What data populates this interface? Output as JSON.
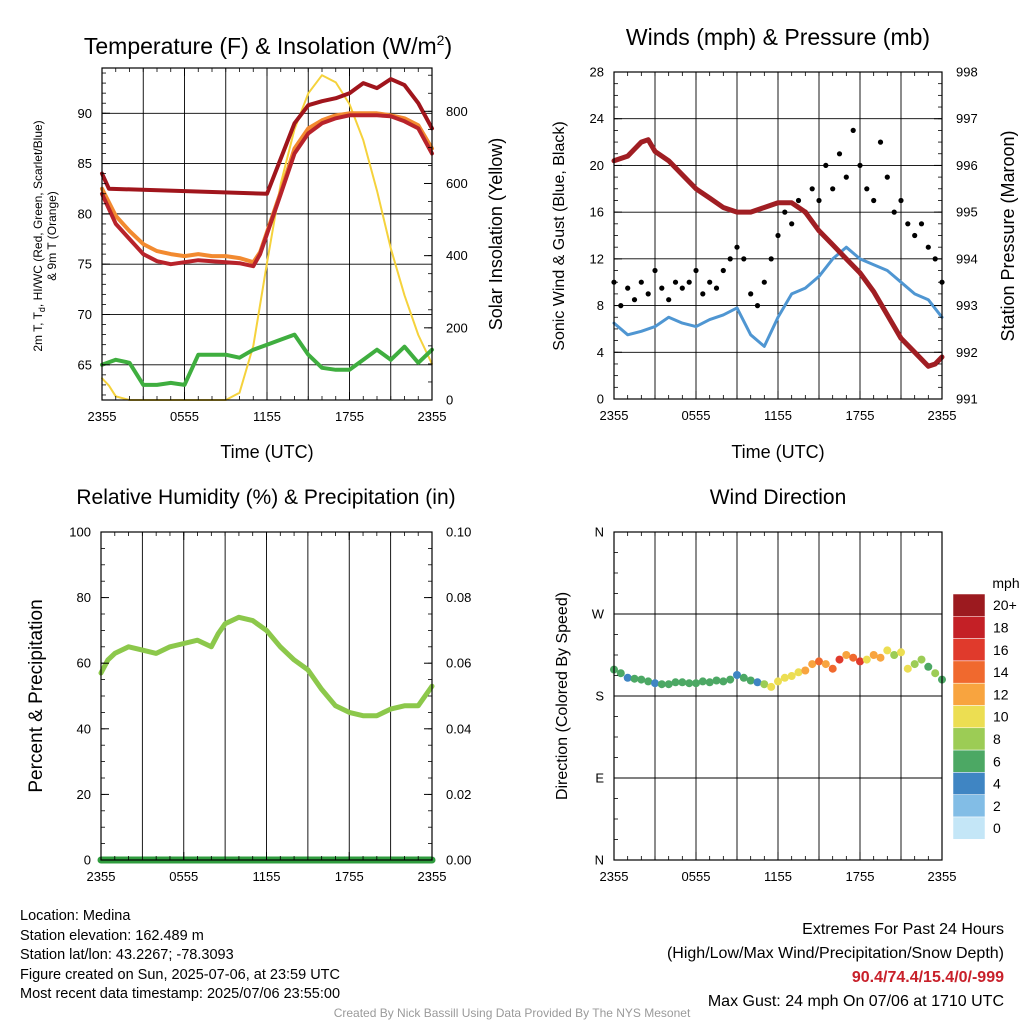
{
  "colors": {
    "red": "#b8232b",
    "scarlet": "#d03030",
    "orange": "#f28a30",
    "darkred": "#a0151c",
    "green": "#3fae3f",
    "yellow": "#f5d23c",
    "blue": "#4f96d2",
    "maroon": "#a01e23",
    "black": "#000000",
    "rh_green": "#8cc84b",
    "precip_green": "#2f9c3e"
  },
  "panels": {
    "temp": {
      "title_main": "Temperature (F) & Insolation (W/m",
      "title_sup": "2",
      "title_end": ")",
      "ylabel_left_1": "2m T, T",
      "ylabel_left_sub": "d",
      "ylabel_left_2": ", HI/WC (Red, Green, Scarlet/Blue)",
      "ylabel_left_3": "& 9m T (Orange)",
      "ylabel_right": "Solar Insolation (Yellow)",
      "xlabel": "Time (UTC)",
      "yticks": [
        "65",
        "70",
        "75",
        "80",
        "85",
        "90"
      ],
      "y2ticks": [
        "0",
        "200",
        "400",
        "600",
        "800"
      ]
    },
    "wind": {
      "title": "Winds (mph) & Pressure (mb)",
      "ylabel_left": "Sonic Wind & Gust (Blue, Black)",
      "ylabel_right": "Station Pressure (Maroon)",
      "xlabel": "Time (UTC)",
      "yticks": [
        "0",
        "4",
        "8",
        "12",
        "16",
        "20",
        "24",
        "28"
      ],
      "y2ticks": [
        "991",
        "992",
        "993",
        "994",
        "995",
        "996",
        "997",
        "998"
      ]
    },
    "rh": {
      "title": "Relative Humidity (%) & Precipitation (in)",
      "ylabel_left": "Percent & Precipitation",
      "yticks": [
        "0",
        "20",
        "40",
        "60",
        "80",
        "100"
      ],
      "y2ticks": [
        "0.00",
        "0.02",
        "0.04",
        "0.06",
        "0.08",
        "0.10"
      ]
    },
    "wdir": {
      "title": "Wind Direction",
      "ylabel_left": "Direction (Colored By Speed)",
      "yticks": [
        "N",
        "E",
        "S",
        "W",
        "N"
      ],
      "legend_title": "mph",
      "legend_labels": [
        "20+",
        "18",
        "16",
        "14",
        "12",
        "10",
        "8",
        "6",
        "4",
        "2",
        "0"
      ],
      "legend_colors": [
        "#9c1a1f",
        "#c42026",
        "#e03a2c",
        "#f0692e",
        "#f8a43f",
        "#ecde52",
        "#9ccc55",
        "#4ca864",
        "#3f85c3",
        "#82bde6",
        "#c4e6f7"
      ]
    }
  },
  "xticks": [
    "2355",
    "0555",
    "1155",
    "1755",
    "2355"
  ],
  "footer": {
    "location": "Location: Medina",
    "elevation": "Station elevation: 162.489 m",
    "latlon": "Station lat/lon: 43.2267; -78.3093",
    "created": "Figure created on Sun, 2025-07-06, at 23:59 UTC",
    "recent": "Most recent data timestamp: 2025/07/06 23:55:00",
    "extremes_title": "Extremes For Past 24 Hours",
    "extremes_desc": "(High/Low/Max Wind/Precipitation/Snow Depth)",
    "extremes_values": "90.4/74.4/15.4/0/-999",
    "max_gust": "Max Gust: 24 mph On 07/06 at 1710 UTC",
    "credit": "Created By Nick Bassill Using Data Provided By The NYS Mesonet"
  },
  "chart_data": [
    {
      "type": "line",
      "title": "Temperature (F) & Insolation (W/m2)",
      "xlabel": "Time (UTC)",
      "ylabel": "2m T, Td, HI/WC (Red, Green, Scarlet/Blue) & 9m T (Orange)",
      "y2label": "Solar Insolation (Yellow)",
      "x_unit": "hours since 2355 UTC",
      "xlim": [
        0,
        24
      ],
      "xtick_labels": [
        "2355",
        "0555",
        "1155",
        "1755",
        "2355"
      ],
      "ylim": [
        61.5,
        94.5
      ],
      "y2lim": [
        0,
        920
      ],
      "series": [
        {
          "name": "2m T (Red)",
          "axis": "left",
          "x": [
            0,
            0.5,
            1,
            2,
            3,
            4,
            5,
            6,
            7,
            8,
            9,
            10,
            11,
            11.5,
            12,
            13,
            14,
            15,
            16,
            17,
            18,
            19,
            20,
            21,
            22,
            23,
            24
          ],
          "y": [
            82,
            80.5,
            79,
            77.5,
            76,
            75.3,
            75,
            75.2,
            75.4,
            75.3,
            75.2,
            75.1,
            74.8,
            76,
            78,
            82,
            86,
            88,
            89,
            89.5,
            89.8,
            89.8,
            89.8,
            89.7,
            89.2,
            88.5,
            86
          ]
        },
        {
          "name": "9m T (Orange)",
          "axis": "left",
          "x": [
            0,
            1,
            2,
            3,
            4,
            5,
            6,
            7,
            8,
            9,
            10,
            11,
            11.5,
            12,
            13,
            14,
            15,
            16,
            17,
            18,
            19,
            20,
            21,
            22,
            23,
            24
          ],
          "y": [
            82.5,
            79.8,
            78.3,
            77,
            76.3,
            76,
            75.8,
            76,
            75.8,
            75.8,
            75.6,
            75.2,
            76.2,
            78.2,
            82.2,
            86.5,
            88.5,
            89.3,
            89.8,
            90,
            90,
            90,
            89.8,
            89.5,
            88.8,
            86.5
          ]
        },
        {
          "name": "Heat Index (Dark Red)",
          "axis": "left",
          "x": [
            0,
            0.5,
            12,
            13,
            14,
            15,
            16,
            17,
            18,
            19,
            20,
            21,
            22,
            23,
            24
          ],
          "y": [
            84,
            82.5,
            82,
            85.5,
            89,
            90.8,
            91.2,
            91.5,
            92,
            93,
            92.5,
            93.4,
            92.8,
            91,
            88.5
          ]
        },
        {
          "name": "2m Td (Green)",
          "axis": "left",
          "x": [
            0,
            1,
            2,
            3,
            4,
            5,
            6,
            7,
            8,
            9,
            10,
            11,
            12,
            13,
            14,
            15,
            16,
            17,
            18,
            19,
            20,
            21,
            22,
            23,
            24
          ],
          "y": [
            65,
            65.5,
            65.2,
            63,
            63,
            63.2,
            63,
            66,
            66,
            66,
            65.7,
            66.5,
            67,
            67.5,
            68,
            66,
            64.7,
            64.5,
            64.5,
            65.5,
            66.5,
            65.5,
            66.8,
            65.2,
            66.5
          ]
        },
        {
          "name": "Solar Insolation (Yellow)",
          "axis": "right",
          "x": [
            0,
            0.5,
            1,
            2,
            3,
            4,
            5,
            6,
            7,
            8,
            9,
            10,
            11,
            12,
            13,
            14,
            15,
            16,
            17,
            18,
            19,
            20,
            21,
            22,
            23,
            24
          ],
          "y": [
            60,
            40,
            10,
            0,
            0,
            0,
            0,
            0,
            0,
            0,
            0,
            20,
            150,
            380,
            600,
            750,
            850,
            900,
            880,
            820,
            720,
            580,
            420,
            290,
            180,
            100
          ]
        }
      ]
    },
    {
      "type": "line",
      "title": "Winds (mph) & Pressure (mb)",
      "xlabel": "Time (UTC)",
      "ylabel": "Sonic Wind & Gust (Blue, Black)",
      "y2label": "Station Pressure (Maroon)",
      "x_unit": "hours since 2355 UTC",
      "xlim": [
        0,
        24
      ],
      "xtick_labels": [
        "2355",
        "0555",
        "1155",
        "1755",
        "2355"
      ],
      "ylim": [
        0,
        28
      ],
      "y2lim": [
        991,
        998
      ],
      "series": [
        {
          "name": "Sonic Wind (Blue)",
          "axis": "left",
          "x": [
            0,
            1,
            2,
            3,
            4,
            5,
            6,
            7,
            8,
            9,
            10,
            11,
            12,
            13,
            14,
            15,
            16,
            17,
            18,
            19,
            20,
            21,
            22,
            23,
            24
          ],
          "y": [
            6.5,
            5.5,
            5.8,
            6.2,
            7,
            6.5,
            6.2,
            6.8,
            7.2,
            7.8,
            5.5,
            4.5,
            7,
            9,
            9.5,
            10.5,
            12,
            13,
            12,
            11.5,
            11,
            10,
            9,
            8.5,
            7
          ]
        },
        {
          "name": "Gust (Black)",
          "axis": "left",
          "mark": "scatter",
          "x": [
            0,
            0.5,
            1,
            1.5,
            2,
            2.5,
            3,
            3.5,
            4,
            4.5,
            5,
            5.5,
            6,
            6.5,
            7,
            7.5,
            8,
            8.5,
            9,
            9.5,
            10,
            10.5,
            11,
            11.5,
            12,
            12.5,
            13,
            13.5,
            14,
            14.5,
            15,
            15.5,
            16,
            16.5,
            17,
            17.5,
            18,
            18.5,
            19,
            19.5,
            20,
            20.5,
            21,
            21.5,
            22,
            22.5,
            23,
            23.5,
            24
          ],
          "y": [
            10,
            8,
            9.5,
            8.5,
            10,
            9,
            11,
            9.5,
            8.5,
            10,
            9.5,
            10,
            11,
            9,
            10,
            9.5,
            11,
            12,
            13,
            12,
            9,
            8,
            10,
            12,
            14,
            16,
            15,
            17,
            16,
            18,
            17,
            20,
            18,
            21,
            19,
            23,
            20,
            18,
            17,
            22,
            19,
            16,
            17,
            15,
            14,
            15,
            13,
            12,
            10
          ]
        },
        {
          "name": "Station Pressure (Maroon)",
          "axis": "right",
          "x": [
            0,
            1,
            2,
            2.5,
            3,
            4,
            5,
            6,
            7,
            8,
            9,
            10,
            11,
            12,
            13,
            14,
            15,
            16,
            17,
            18,
            19,
            20,
            21,
            22,
            23,
            23.5,
            24
          ],
          "y": [
            996.1,
            996.2,
            996.5,
            996.55,
            996.3,
            996.1,
            995.8,
            995.5,
            995.3,
            995.1,
            995.0,
            995.0,
            995.1,
            995.2,
            995.2,
            995.0,
            994.6,
            994.3,
            994.0,
            993.7,
            993.3,
            992.8,
            992.3,
            992.0,
            991.7,
            991.75,
            991.9
          ]
        }
      ]
    },
    {
      "type": "line",
      "title": "Relative Humidity (%) & Precipitation (in)",
      "ylabel": "Percent & Precipitation",
      "x_unit": "hours since 2355 UTC",
      "xlim": [
        0,
        24
      ],
      "xtick_labels": [
        "2355",
        "0555",
        "1155",
        "1755",
        "2355"
      ],
      "ylim": [
        0,
        100
      ],
      "y2lim": [
        0,
        0.1
      ],
      "series": [
        {
          "name": "Relative Humidity",
          "axis": "left",
          "x": [
            0,
            0.5,
            1,
            2,
            3,
            4,
            5,
            6,
            7,
            8,
            8.5,
            9,
            10,
            11,
            12,
            13,
            14,
            15,
            16,
            17,
            18,
            19,
            20,
            21,
            22,
            23,
            24
          ],
          "y": [
            57,
            61,
            63,
            65,
            64,
            63,
            65,
            66,
            67,
            65,
            69,
            72,
            74,
            73,
            70,
            65,
            61,
            58,
            52,
            47,
            45,
            44,
            44,
            46,
            47,
            47,
            53
          ]
        },
        {
          "name": "Precipitation",
          "axis": "right",
          "x": [
            0,
            24
          ],
          "y": [
            0,
            0
          ]
        }
      ]
    },
    {
      "type": "scatter",
      "title": "Wind Direction",
      "ylabel": "Direction (Colored By Speed)",
      "x_unit": "hours since 2355 UTC",
      "xlim": [
        0,
        24
      ],
      "xtick_labels": [
        "2355",
        "0555",
        "1155",
        "1755",
        "2355"
      ],
      "ylim": [
        0,
        360
      ],
      "ytick_labels": [
        "N",
        "E",
        "S",
        "W",
        "N"
      ],
      "colorbar": {
        "label": "mph",
        "levels": [
          20,
          18,
          16,
          14,
          12,
          10,
          8,
          6,
          4,
          2,
          0
        ]
      },
      "points": {
        "x": [
          0,
          0.5,
          1,
          1.5,
          2,
          2.5,
          3,
          3.5,
          4,
          4.5,
          5,
          5.5,
          6,
          6.5,
          7,
          7.5,
          8,
          8.5,
          9,
          9.5,
          10,
          10.5,
          11,
          11.5,
          12,
          12.5,
          13,
          13.5,
          14,
          14.5,
          15,
          15.5,
          16,
          16.5,
          17,
          17.5,
          18,
          18.5,
          19,
          19.5,
          20,
          20.5,
          21,
          21.5,
          22,
          22.5,
          23,
          23.5,
          24
        ],
        "y": [
          209,
          205,
          200,
          199,
          198,
          196,
          194,
          193,
          193,
          195,
          195,
          194,
          194,
          196,
          195,
          197,
          196,
          198,
          203,
          200,
          197,
          195,
          193,
          190,
          196,
          200,
          202,
          206,
          208,
          215,
          218,
          215,
          210,
          220,
          225,
          222,
          218,
          220,
          225,
          222,
          230,
          225,
          228,
          210,
          215,
          220,
          212,
          205,
          198
        ],
        "speed": [
          6,
          6,
          5,
          6,
          6,
          6,
          5,
          6,
          6,
          6,
          6,
          6,
          6,
          6,
          6,
          7,
          6,
          6,
          5,
          6,
          7,
          5,
          9,
          10,
          10,
          10,
          11,
          10,
          12,
          13,
          14,
          12,
          15,
          16,
          12,
          14,
          16,
          11,
          12,
          13,
          10,
          9,
          11,
          10,
          8,
          9,
          7,
          8,
          7
        ]
      }
    }
  ]
}
